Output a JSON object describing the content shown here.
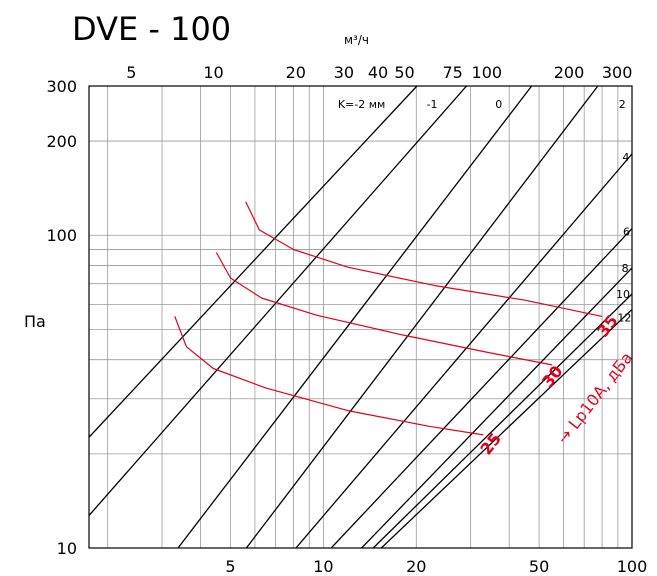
{
  "title": "DVE - 100",
  "chart_data": {
    "type": "line",
    "title": "DVE - 100",
    "top_axis": {
      "label": "м³/ч",
      "scale": "log",
      "range": [
        3.5,
        340
      ],
      "ticks": [
        5,
        10,
        20,
        30,
        40,
        50,
        75,
        100,
        200,
        300
      ],
      "tick_labels": [
        "5",
        "10",
        "20",
        "30",
        "40",
        "50",
        "75",
        "100",
        "200",
        "300"
      ]
    },
    "bottom_axis": {
      "label": "",
      "scale": "log",
      "range": [
        1.74,
        100
      ],
      "ticks": [
        5,
        10,
        20,
        50,
        100
      ],
      "tick_labels": [
        "5",
        "10",
        "20",
        "50",
        "100"
      ]
    },
    "y_axis": {
      "label": "Па",
      "scale": "log",
      "range": [
        10,
        300
      ],
      "ticks": [
        10,
        100,
        200,
        300
      ],
      "tick_labels": [
        "10",
        "100",
        "200",
        "300"
      ]
    },
    "grid": true,
    "k_lines": {
      "labels": [
        "K=-2 мм",
        "-1",
        "0",
        "2",
        "4",
        "6",
        "8",
        "10",
        "12"
      ],
      "series": [
        {
          "name": "K=-2 мм",
          "points": [
            [
              1.74,
              22.6
            ],
            [
              20.1,
              300
            ]
          ]
        },
        {
          "name": "-1",
          "points": [
            [
              1.74,
              12.7
            ],
            [
              29.1,
              300
            ]
          ]
        },
        {
          "name": "0",
          "points": [
            [
              3.38,
              10
            ],
            [
              47.3,
              300
            ]
          ]
        },
        {
          "name": "2",
          "points": [
            [
              5.63,
              10
            ],
            [
              77.5,
              300
            ]
          ]
        },
        {
          "name": "4",
          "points": [
            [
              8.15,
              10
            ],
            [
              100,
              182
            ]
          ]
        },
        {
          "name": "6",
          "points": [
            [
              10.6,
              10
            ],
            [
              100,
              105
            ]
          ]
        },
        {
          "name": "8",
          "points": [
            [
              13.3,
              10
            ],
            [
              100,
              78.6
            ]
          ]
        },
        {
          "name": "10",
          "points": [
            [
              14.5,
              10
            ],
            [
              100,
              64.9
            ]
          ]
        },
        {
          "name": "12",
          "points": [
            [
              15.4,
              10
            ],
            [
              100,
              57.9
            ]
          ]
        }
      ]
    },
    "sound_lines": {
      "label": "→ Lp10A, дБа",
      "series": [
        {
          "name": "25",
          "points": [
            [
              3.3,
              55
            ],
            [
              3.6,
              44
            ],
            [
              4.4,
              37.5
            ],
            [
              6.5,
              32.5
            ],
            [
              12,
              27.5
            ],
            [
              22,
              24.5
            ],
            [
              33,
              23
            ]
          ]
        },
        {
          "name": "30",
          "points": [
            [
              4.5,
              88
            ],
            [
              5.0,
              73
            ],
            [
              6.3,
              63
            ],
            [
              9.5,
              55.5
            ],
            [
              18,
              48
            ],
            [
              35,
              42
            ],
            [
              55,
              38.5
            ]
          ]
        },
        {
          "name": "35",
          "points": [
            [
              5.6,
              128
            ],
            [
              6.2,
              104
            ],
            [
              8.0,
              90
            ],
            [
              12,
              79
            ],
            [
              23,
              69
            ],
            [
              45,
              62
            ],
            [
              80,
              55
            ]
          ]
        }
      ]
    }
  }
}
